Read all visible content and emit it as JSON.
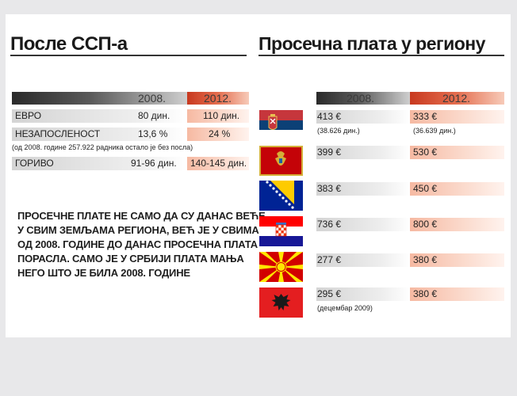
{
  "left": {
    "title": "После ССП-а",
    "years": [
      "2008.",
      "2012."
    ],
    "rows": [
      {
        "label": "ЕВРО",
        "v2008": "80 дин.",
        "v2012": "110 дин."
      },
      {
        "label": "НЕЗАПОСЛЕНОСТ",
        "v2008": "13,6 %",
        "v2012": "24 %"
      },
      {
        "label": "ГОРИВО",
        "v2008": "91-96 дин.",
        "v2012": "140-145 дин."
      }
    ],
    "unemployment_note": "(од 2008. године 257.922 радника остало је без посла)",
    "paragraph": [
      "ПРОСЕЧНЕ ПЛАТЕ НЕ САМО ДА СУ ДАНАС ВЕЋЕ",
      "У СВИМ ЗЕМЉАМА РЕГИОНА, ВЕЋ ЈЕ У СВИМА",
      "ОД 2008. ГОДИНЕ ДО ДАНАС ПРОСЕЧНА ПЛАТА",
      "ПОРАСЛА. САМО ЈЕ У СРБИЈИ ПЛАТА МАЊА",
      "НЕГО ШТО ЈЕ БИЛА 2008. ГОДИНЕ"
    ]
  },
  "right": {
    "title": "Просечна плата у региону",
    "years": [
      "2008.",
      "2012."
    ],
    "rows": [
      {
        "flag": "serbia-flag-icon",
        "v2008": "413 €",
        "v2012": "333 €",
        "note2008": "(38.626 дин.)",
        "note2012": "(36.639 дин.)"
      },
      {
        "flag": "montenegro-flag-icon",
        "v2008": "399 €",
        "v2012": "530 €"
      },
      {
        "flag": "bosnia-flag-icon",
        "v2008": "383 €",
        "v2012": "450 €"
      },
      {
        "flag": "croatia-flag-icon",
        "v2008": "736 €",
        "v2012": "800 €"
      },
      {
        "flag": "macedonia-flag-icon",
        "v2008": "277 €",
        "v2012": "380 €"
      },
      {
        "flag": "albania-flag-icon",
        "v2008": "295 €",
        "v2012": "380 €",
        "note2008": "(децембар 2009)"
      }
    ]
  },
  "colors": {
    "accent_red": "#c8391f",
    "band_red": "#f6b9a2",
    "band_gray": "#d4d4d4",
    "header_dark": "#2a2a2a"
  }
}
